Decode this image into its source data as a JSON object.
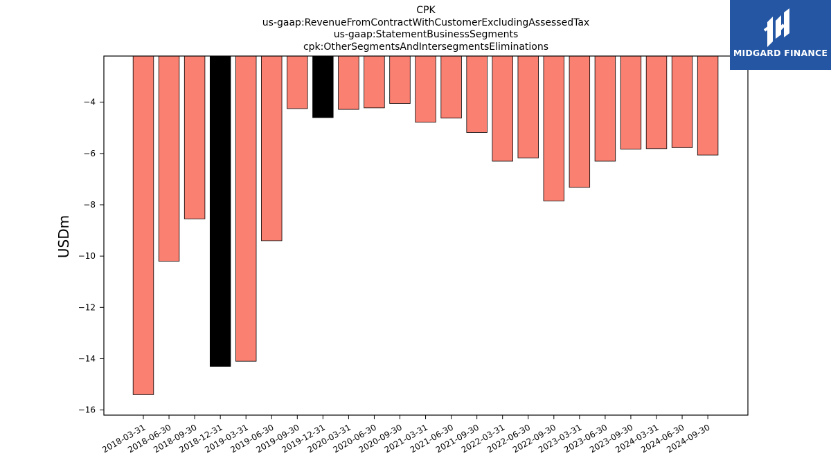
{
  "title_lines": [
    "CPK",
    "us-gaap:RevenueFromContractWithCustomerExcludingAssessedTax",
    "us-gaap:StatementBusinessSegments",
    "cpk:OtherSegmentsAndIntersegmentsEliminations"
  ],
  "brand": {
    "name": "MIDGARD FINANCE",
    "icon": "midgard-logo-icon",
    "background": "#2456a4"
  },
  "colors": {
    "bar_default": "#fa8072",
    "bar_highlight": "#000000",
    "bar_edge": "#000000"
  },
  "chart_data": {
    "type": "bar",
    "ylabel": "USDm",
    "xlabel": "",
    "ylim": [
      -16.2,
      -2.2
    ],
    "yticks": [
      -4,
      -6,
      -8,
      -10,
      -12,
      -14,
      -16
    ],
    "grid": false,
    "categories": [
      "2018-03-31",
      "2018-06-30",
      "2018-09-30",
      "2018-12-31",
      "2019-03-31",
      "2019-06-30",
      "2019-09-30",
      "2019-12-31",
      "2020-03-31",
      "2020-06-30",
      "2020-09-30",
      "2021-03-31",
      "2021-06-30",
      "2021-09-30",
      "2022-03-31",
      "2022-06-30",
      "2022-09-30",
      "2023-03-31",
      "2023-06-30",
      "2023-09-30",
      "2024-03-31",
      "2024-06-30",
      "2024-09-30"
    ],
    "values": [
      -15.4,
      -10.2,
      -8.55,
      -14.3,
      -14.1,
      -9.4,
      -4.25,
      -4.6,
      -4.28,
      -4.22,
      -4.05,
      -4.78,
      -4.62,
      -5.18,
      -6.3,
      -6.17,
      -7.85,
      -7.32,
      -6.3,
      -5.83,
      -5.81,
      -5.77,
      -6.06
    ],
    "highlighted": [
      "2018-12-31",
      "2019-12-31"
    ]
  }
}
